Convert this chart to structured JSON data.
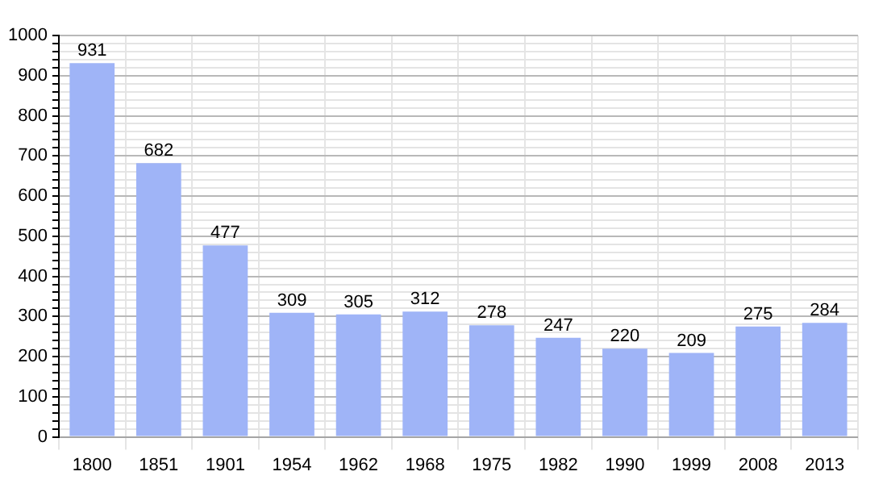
{
  "chart_data": {
    "type": "bar",
    "categories": [
      "1800",
      "1851",
      "1901",
      "1954",
      "1962",
      "1968",
      "1975",
      "1982",
      "1990",
      "1999",
      "2008",
      "2013"
    ],
    "values": [
      931,
      682,
      477,
      309,
      305,
      312,
      278,
      247,
      220,
      209,
      275,
      284
    ],
    "color": "#9fb4f7",
    "ylim": [
      0,
      1000
    ],
    "yticks": [
      0,
      {
        "value": 20,
        "label": null
      },
      {
        "value": 40,
        "label": null
      },
      {
        "value": 60,
        "label": null
      },
      {
        "value": 80,
        "label": null
      },
      100,
      {
        "value": 120,
        "label": null
      },
      {
        "value": 140,
        "label": null
      },
      {
        "value": 160,
        "label": null
      },
      {
        "value": 180,
        "label": null
      },
      200,
      {
        "value": 220,
        "label": null
      },
      {
        "value": 240,
        "label": null
      },
      {
        "value": 260,
        "label": null
      },
      {
        "value": 280,
        "label": null
      },
      300,
      {
        "value": 320,
        "label": null
      },
      {
        "value": 340,
        "label": null
      },
      {
        "value": 360,
        "label": null
      },
      {
        "value": 380,
        "label": null
      },
      400,
      {
        "value": 420,
        "label": null
      },
      {
        "value": 440,
        "label": null
      },
      {
        "value": 460,
        "label": null
      },
      {
        "value": 480,
        "label": null
      },
      500,
      {
        "value": 520,
        "label": null
      },
      {
        "value": 540,
        "label": null
      },
      {
        "value": 560,
        "label": null
      },
      {
        "value": 580,
        "label": null
      },
      600,
      {
        "value": 620,
        "label": null
      },
      {
        "value": 640,
        "label": null
      },
      {
        "value": 660,
        "label": null
      },
      {
        "value": 680,
        "label": null
      },
      700,
      {
        "value": 720,
        "label": null
      },
      {
        "value": 740,
        "label": null
      },
      {
        "value": 760,
        "label": null
      },
      {
        "value": 780,
        "label": null
      },
      800,
      {
        "value": 820,
        "label": null
      },
      {
        "value": 840,
        "label": null
      },
      {
        "value": 860,
        "label": null
      },
      {
        "value": 880,
        "label": null
      },
      900,
      {
        "value": 920,
        "label": null
      },
      {
        "value": 940,
        "label": null
      },
      {
        "value": 960,
        "label": null
      },
      {
        "value": 980,
        "label": null
      },
      1000
    ],
    "grid": true,
    "data_labels": true
  }
}
